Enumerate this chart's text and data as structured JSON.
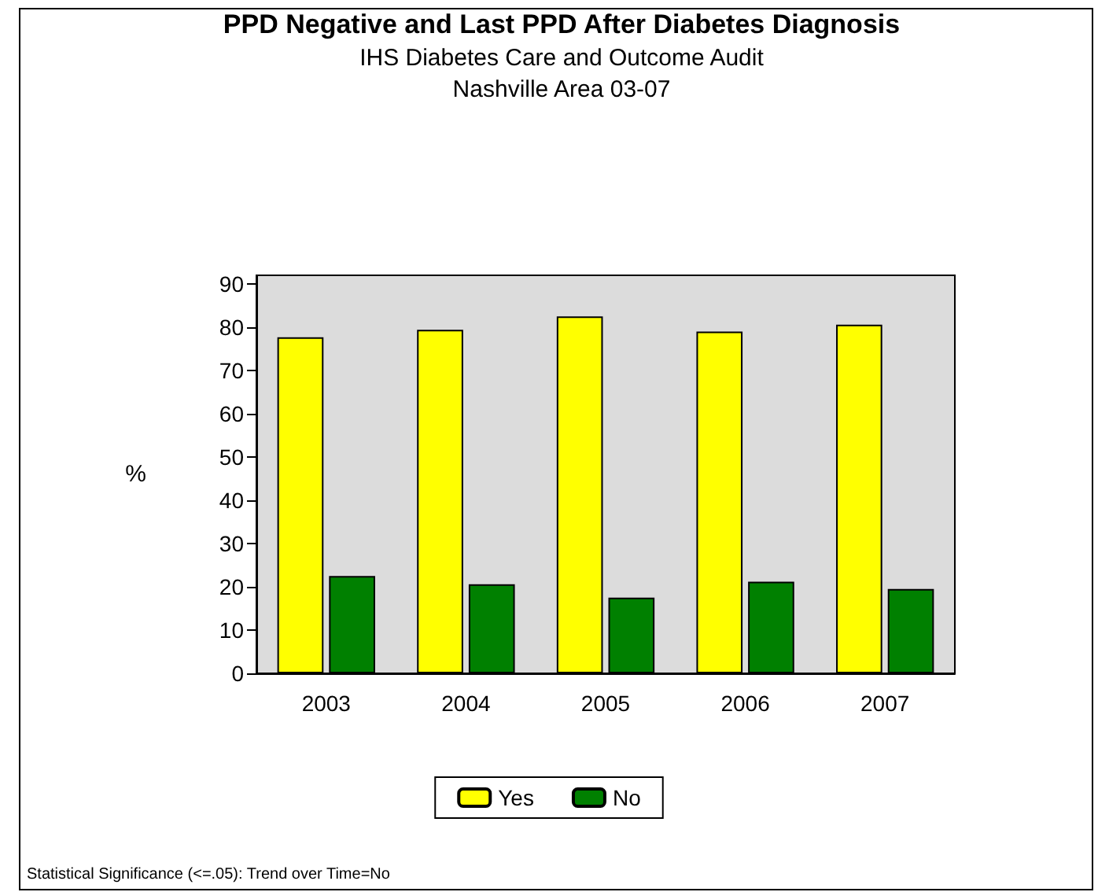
{
  "chart_data": {
    "type": "bar",
    "title": "PPD Negative and Last PPD After Diabetes Diagnosis",
    "subtitle": "IHS Diabetes Care and Outcome Audit\nNashville Area 03-07",
    "ylabel": "%",
    "categories": [
      "2003",
      "2004",
      "2005",
      "2006",
      "2007"
    ],
    "series": [
      {
        "name": "Yes",
        "color": "#ffff00",
        "values": [
          77.7,
          79.4,
          82.5,
          79.0,
          80.6
        ]
      },
      {
        "name": "No",
        "color": "#008000",
        "values": [
          22.5,
          20.6,
          17.5,
          21.2,
          19.5
        ]
      }
    ],
    "ylim": [
      0,
      92
    ],
    "yticks": [
      0,
      10,
      20,
      30,
      40,
      50,
      60,
      70,
      80,
      90
    ],
    "grid": false,
    "legend": "bottom",
    "annotations": [
      "Statistical Significance (<=.05): Trend over Time=No"
    ]
  }
}
